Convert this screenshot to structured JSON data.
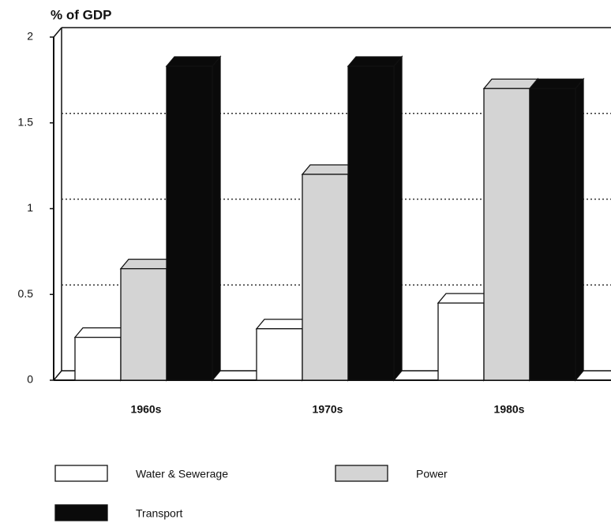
{
  "chart_data": {
    "type": "bar3d",
    "y_label": "% of GDP",
    "categories": [
      "1960s",
      "1970s",
      "1980s"
    ],
    "series": [
      {
        "name": "Water & Sewerage",
        "color": "#ffffff",
        "values": [
          0.25,
          0.3,
          0.45
        ]
      },
      {
        "name": "Power",
        "color": "#d4d4d4",
        "values": [
          0.65,
          1.2,
          1.7
        ]
      },
      {
        "name": "Transport",
        "color": "#0a0a0a",
        "values": [
          1.83,
          1.83,
          1.7
        ]
      }
    ],
    "ylim": [
      0,
      2
    ],
    "yticks": [
      0,
      0.5,
      1,
      1.5,
      2
    ],
    "grid": true
  }
}
